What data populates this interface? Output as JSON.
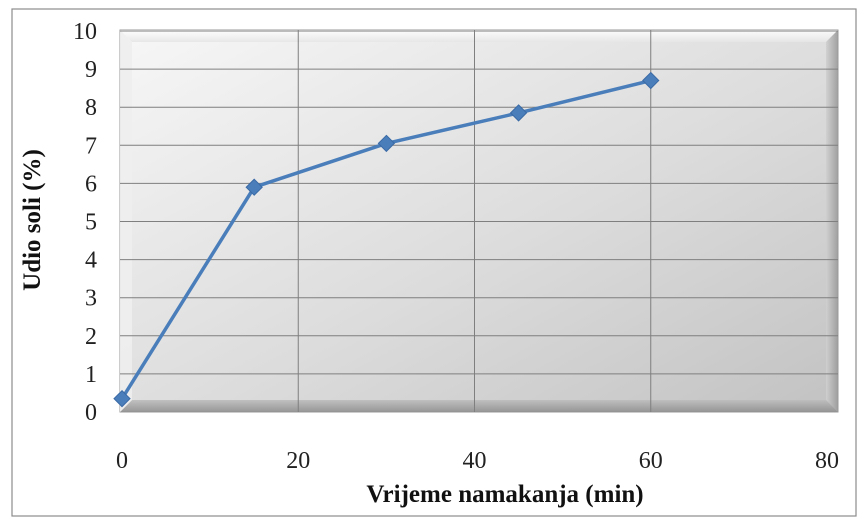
{
  "chart_data": {
    "type": "line",
    "title": "",
    "xlabel": "Vrijeme namakanja (min)",
    "ylabel": "Udio soli (%)",
    "xlim": [
      0,
      80
    ],
    "ylim": [
      0,
      10
    ],
    "x_ticks": [
      "0",
      "20",
      "40",
      "60",
      "80"
    ],
    "y_ticks": [
      "0",
      "1",
      "2",
      "3",
      "4",
      "5",
      "6",
      "7",
      "8",
      "9",
      "10"
    ],
    "grid": true,
    "legend": "none",
    "series": [
      {
        "x": [
          0,
          15,
          30,
          45,
          60
        ],
        "values": [
          0.35,
          5.9,
          7.05,
          7.85,
          8.7
        ]
      }
    ],
    "colors": {
      "line": "#4a7ebb",
      "marker": "#4a7ebb",
      "grid": "#7f7f7f",
      "frame": "#8c8c8c"
    }
  }
}
